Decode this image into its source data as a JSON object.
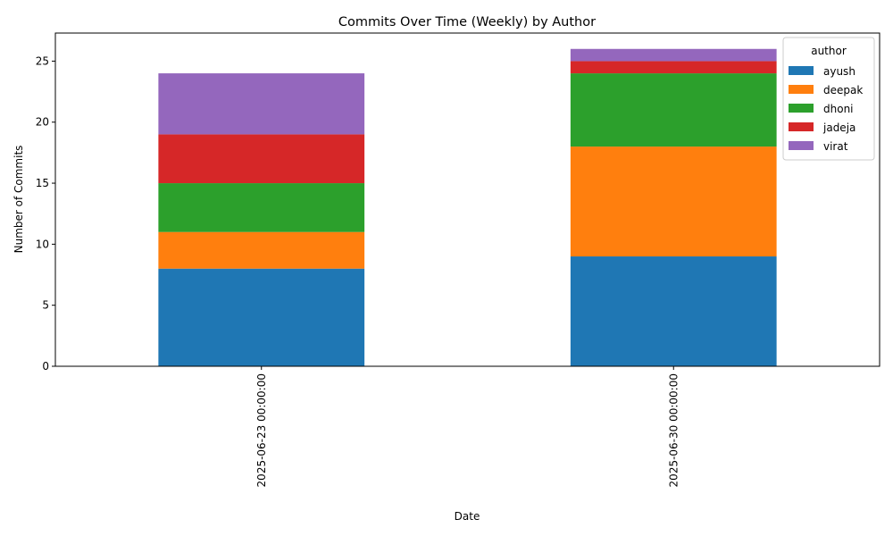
{
  "chart_data": {
    "type": "bar",
    "stacked": true,
    "title": "Commits Over Time (Weekly) by Author",
    "xlabel": "Date",
    "ylabel": "Number of Commits",
    "categories": [
      "2025-06-23 00:00:00",
      "2025-06-30 00:00:00"
    ],
    "ylim": [
      0,
      27.3
    ],
    "yticks": [
      0,
      5,
      10,
      15,
      20,
      25
    ],
    "grid": false,
    "legend": {
      "title": "author",
      "placement": "top-right"
    },
    "series": [
      {
        "name": "ayush",
        "color": "#1f77b4",
        "values": [
          8,
          9
        ]
      },
      {
        "name": "deepak",
        "color": "#ff7f0e",
        "values": [
          3,
          9
        ]
      },
      {
        "name": "dhoni",
        "color": "#2ca02c",
        "values": [
          4,
          6
        ]
      },
      {
        "name": "jadeja",
        "color": "#d62728",
        "values": [
          4,
          1
        ]
      },
      {
        "name": "virat",
        "color": "#9467bd",
        "values": [
          5,
          1
        ]
      }
    ]
  }
}
